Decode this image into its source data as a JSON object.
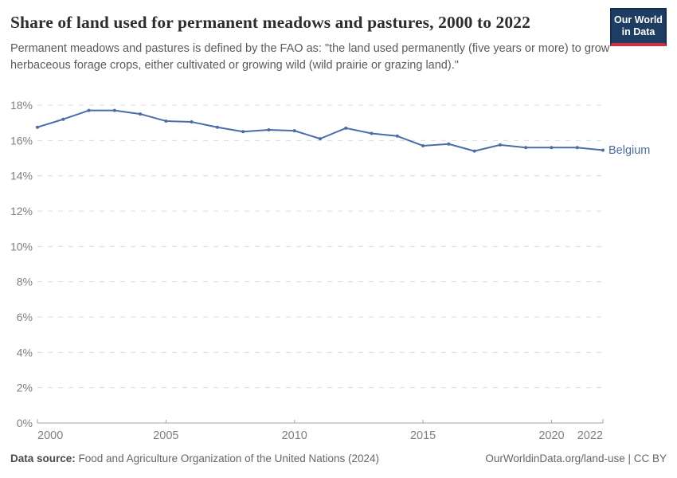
{
  "header": {
    "title": "Share of land used for permanent meadows and pastures, 2000 to 2022",
    "subtitle": "Permanent meadows and pastures is defined by the FAO as: \"the land used permanently (five years or more) to grow herbaceous forage crops, either cultivated or growing wild (wild prairie or grazing land).\"",
    "logo_line1": "Our World",
    "logo_line2": "in Data",
    "logo_colors": {
      "background": "#1d3d63",
      "accent": "#cb3045",
      "text": "#ffffff"
    }
  },
  "chart_data": {
    "type": "line",
    "title": "Share of land used for permanent meadows and pastures, 2000 to 2022",
    "xlabel": "",
    "ylabel": "",
    "xlim": [
      2000,
      2022
    ],
    "ylim": [
      0,
      18
    ],
    "grid": "horizontal-dashed",
    "legend_position": "line-end",
    "x_ticks": [
      {
        "value": 2000,
        "label": "2000"
      },
      {
        "value": 2005,
        "label": "2005"
      },
      {
        "value": 2010,
        "label": "2010"
      },
      {
        "value": 2015,
        "label": "2015"
      },
      {
        "value": 2020,
        "label": "2020"
      },
      {
        "value": 2022,
        "label": "2022"
      }
    ],
    "y_ticks": [
      {
        "value": 0,
        "label": "0%"
      },
      {
        "value": 2,
        "label": "2%"
      },
      {
        "value": 4,
        "label": "4%"
      },
      {
        "value": 6,
        "label": "6%"
      },
      {
        "value": 8,
        "label": "8%"
      },
      {
        "value": 10,
        "label": "10%"
      },
      {
        "value": 12,
        "label": "12%"
      },
      {
        "value": 14,
        "label": "14%"
      },
      {
        "value": 16,
        "label": "16%"
      },
      {
        "value": 18,
        "label": "18%"
      }
    ],
    "series": [
      {
        "name": "Belgium",
        "color": "#4C6CA8",
        "x": [
          2000,
          2001,
          2002,
          2003,
          2004,
          2005,
          2006,
          2007,
          2008,
          2009,
          2010,
          2011,
          2012,
          2013,
          2014,
          2015,
          2016,
          2017,
          2018,
          2019,
          2020,
          2021,
          2022
        ],
        "values": [
          16.75,
          17.2,
          17.7,
          17.7,
          17.5,
          17.1,
          17.05,
          16.75,
          16.5,
          16.6,
          16.55,
          16.1,
          16.7,
          16.4,
          16.25,
          15.7,
          15.8,
          15.4,
          15.75,
          15.6,
          15.6,
          15.6,
          15.45
        ]
      }
    ]
  },
  "footer": {
    "source_label": "Data source:",
    "source_text": " Food and Agriculture Organization of the United Nations (2024)",
    "credit_link": "OurWorldinData.org/land-use",
    "credit_suffix": " | CC BY"
  }
}
